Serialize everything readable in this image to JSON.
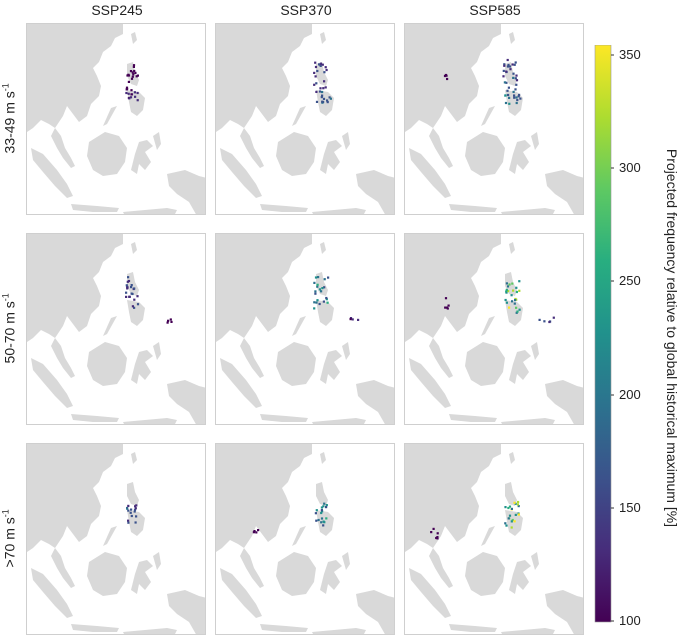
{
  "columns": [
    "SSP245",
    "SSP370",
    "SSP585"
  ],
  "rows": [
    {
      "prefix": "33-49 m s",
      "sup": "-1"
    },
    {
      "prefix": "50-70 m s",
      "sup": "-1"
    },
    {
      "prefix": ">70 m s",
      "sup": "-1"
    }
  ],
  "colorbar": {
    "label": "Projected frequency relative to global historical maximum [%]",
    "ticks": [
      "350",
      "300",
      "250",
      "200",
      "150",
      "100"
    ],
    "min": 100,
    "max": 355,
    "colormap": "viridis"
  },
  "colors": {
    "land": "#d9d9d9",
    "sea": "#ffffff",
    "low": "#440154",
    "high": "#fde725"
  }
}
